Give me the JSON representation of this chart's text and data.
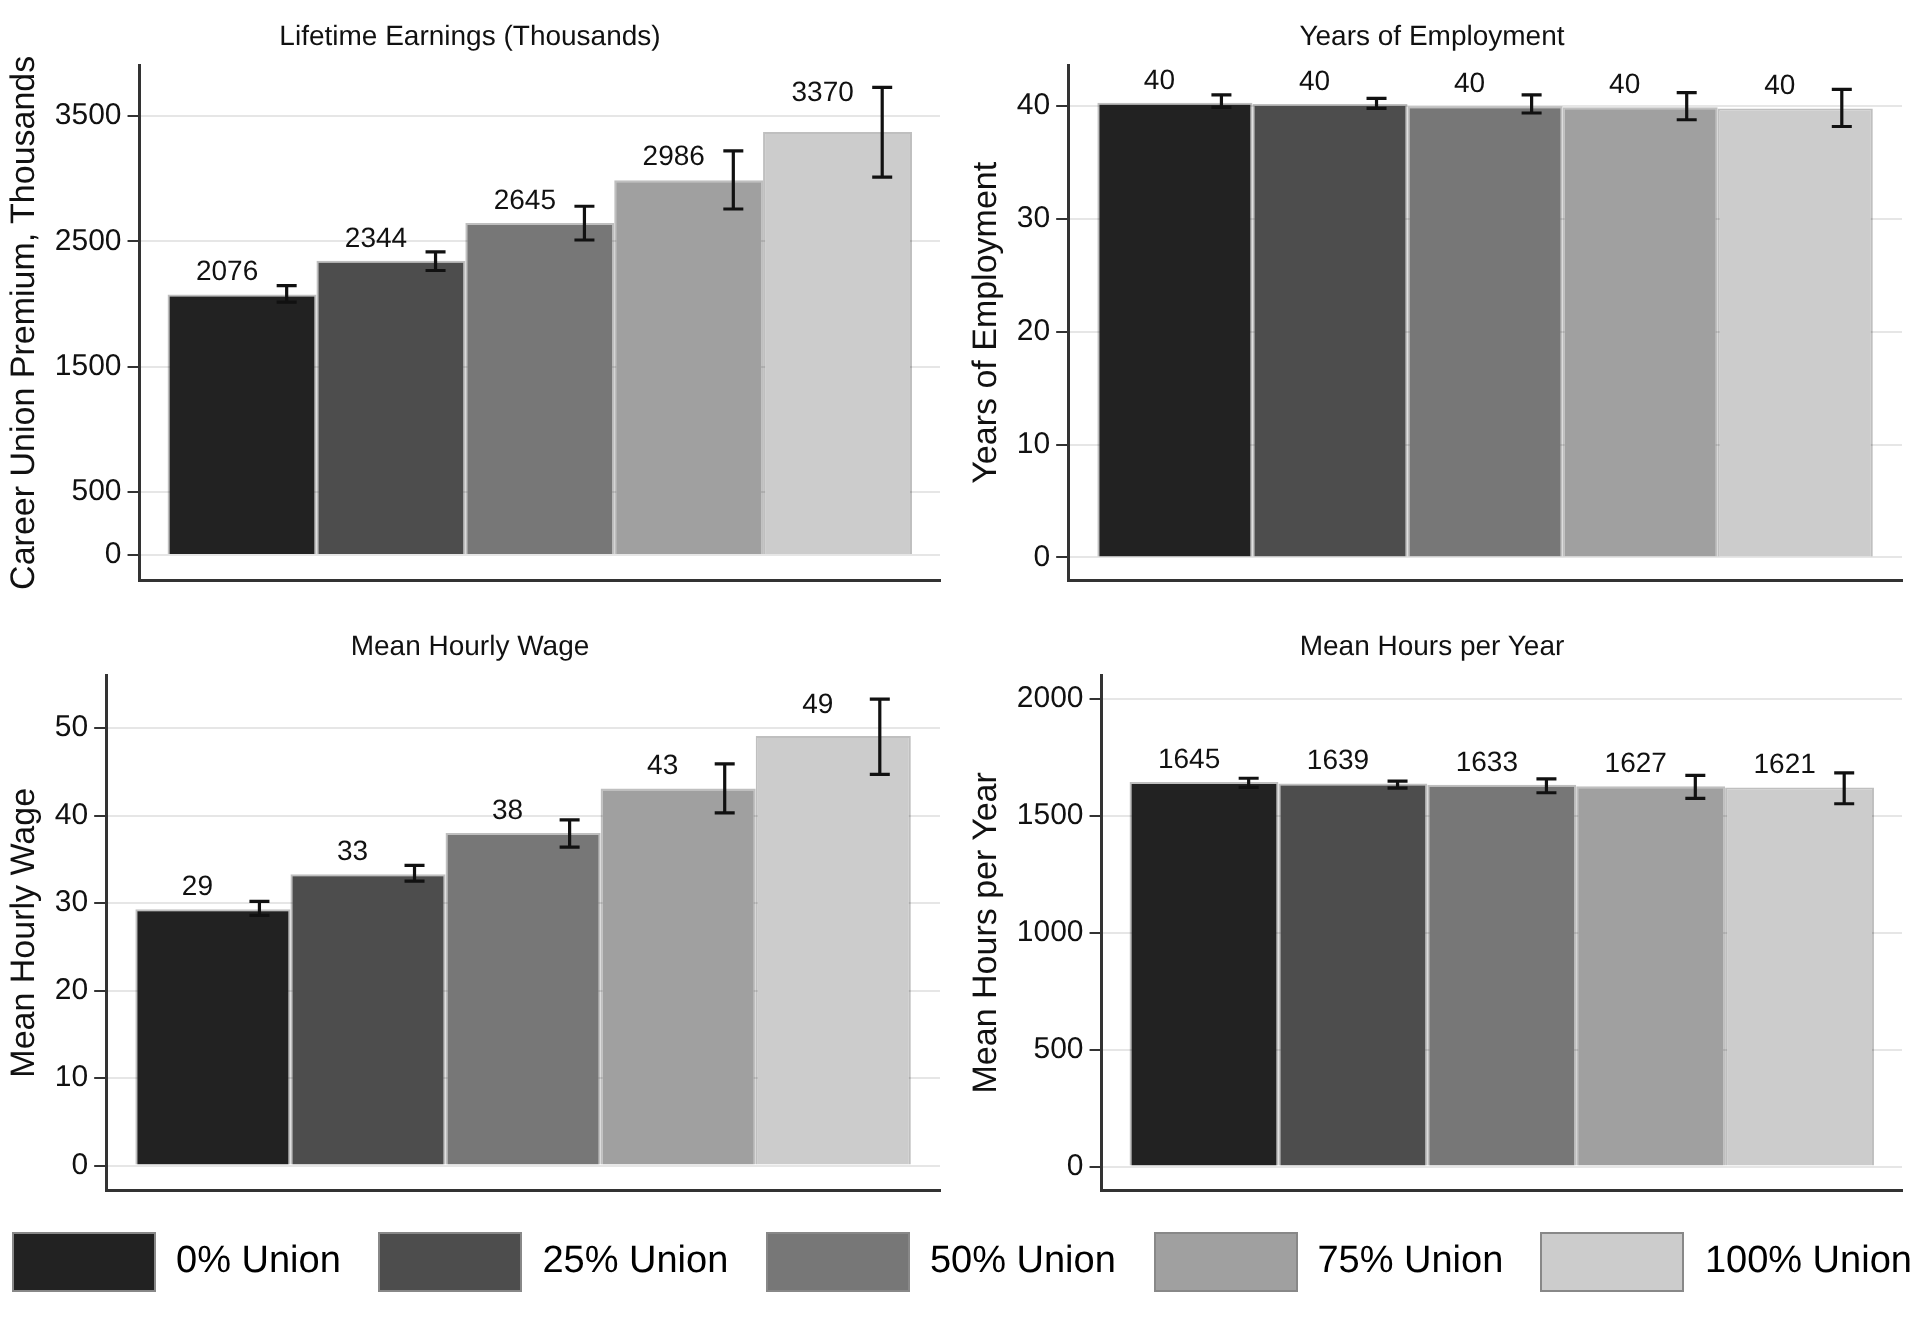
{
  "chart_data": [
    {
      "type": "bar",
      "title": "Lifetime Earnings (Thousands)",
      "ylabel": "Career Union Premium, Thousands",
      "categories": [
        null
      ],
      "ylim": [
        -200,
        3900
      ],
      "yticks": [
        0,
        500,
        1500,
        2500,
        3500
      ],
      "grid": "y",
      "tick_labels": "y",
      "legend": false,
      "data_labels": true,
      "series": [
        {
          "color": "#222222",
          "values": [
            2076
          ],
          "errors": [
            [
              2014,
              2146
            ]
          ]
        },
        {
          "color": "#4d4d4d",
          "values": [
            2344
          ],
          "errors": [
            [
              2267,
              2416
            ]
          ]
        },
        {
          "color": "#777777",
          "values": [
            2645
          ],
          "errors": [
            [
              2510,
              2779
            ]
          ]
        },
        {
          "color": "#a0a0a0",
          "values": [
            2986
          ],
          "errors": [
            [
              2757,
              3220
            ]
          ]
        },
        {
          "color": "#cccccc",
          "values": [
            3370
          ],
          "errors": [
            [
              3011,
              3726
            ]
          ]
        }
      ]
    },
    {
      "type": "bar",
      "title": "Years of Employment",
      "ylabel": "Years of Employment",
      "categories": [
        null
      ],
      "ylim": [
        -2,
        43.6
      ],
      "yticks": [
        0,
        10,
        20,
        30,
        40
      ],
      "grid": "y",
      "tick_labels": "y",
      "legend": false,
      "series": [
        {
          "color": "#222222",
          "values": [
            40.3
          ],
          "value_labels": [
            "40"
          ],
          "errors": [
            [
              39.9,
              41.0
            ]
          ]
        },
        {
          "color": "#4d4d4d",
          "values": [
            40.2
          ],
          "value_labels": [
            "40"
          ],
          "errors": [
            [
              39.8,
              40.7
            ]
          ]
        },
        {
          "color": "#777777",
          "values": [
            40.0
          ],
          "value_labels": [
            "40"
          ],
          "errors": [
            [
              39.4,
              41.0
            ]
          ]
        },
        {
          "color": "#a0a0a0",
          "values": [
            39.9
          ],
          "value_labels": [
            "40"
          ],
          "errors": [
            [
              38.8,
              41.2
            ]
          ]
        },
        {
          "color": "#cccccc",
          "values": [
            39.8
          ],
          "value_labels": [
            "40"
          ],
          "errors": [
            [
              38.2,
              41.5
            ]
          ]
        }
      ]
    },
    {
      "type": "bar",
      "title": "Mean Hourly Wage",
      "ylabel": "Mean Hourly Wage",
      "categories": [
        null
      ],
      "ylim": [
        -2.8,
        56
      ],
      "yticks": [
        0,
        10,
        20,
        30,
        40,
        50
      ],
      "grid": "y",
      "tick_labels": "y",
      "legend": false,
      "series": [
        {
          "color": "#222222",
          "values": [
            29.3
          ],
          "value_labels": [
            "29"
          ],
          "errors": [
            [
              28.6,
              30.2
            ]
          ]
        },
        {
          "color": "#4d4d4d",
          "values": [
            33.3
          ],
          "value_labels": [
            "33"
          ],
          "errors": [
            [
              32.5,
              34.3
            ]
          ]
        },
        {
          "color": "#777777",
          "values": [
            38.0
          ],
          "value_labels": [
            "38"
          ],
          "errors": [
            [
              36.4,
              39.5
            ]
          ]
        },
        {
          "color": "#a0a0a0",
          "values": [
            43.1
          ],
          "value_labels": [
            "43"
          ],
          "errors": [
            [
              40.3,
              45.9
            ]
          ]
        },
        {
          "color": "#cccccc",
          "values": [
            49.1
          ],
          "value_labels": [
            "49"
          ],
          "errors": [
            [
              44.7,
              53.3
            ]
          ]
        }
      ]
    },
    {
      "type": "bar",
      "title": "Mean Hours per Year",
      "ylabel": "Mean Hours per Year",
      "categories": [
        null
      ],
      "ylim": [
        -100,
        2100
      ],
      "yticks": [
        0,
        500,
        1000,
        1500,
        2000
      ],
      "grid": "y",
      "tick_labels": "y",
      "legend": "bottom",
      "data_labels": true,
      "series": [
        {
          "name": "0% Union",
          "color": "#222222",
          "values": [
            1645
          ],
          "errors": [
            [
              1622,
              1661
            ]
          ]
        },
        {
          "name": "25% Union",
          "color": "#4d4d4d",
          "values": [
            1639
          ],
          "errors": [
            [
              1619,
              1649
            ]
          ]
        },
        {
          "name": "50% Union",
          "color": "#777777",
          "values": [
            1633
          ],
          "errors": [
            [
              1599,
              1658
            ]
          ]
        },
        {
          "name": "75% Union",
          "color": "#a0a0a0",
          "values": [
            1627
          ],
          "errors": [
            [
              1575,
              1673
            ]
          ]
        },
        {
          "name": "100% Union",
          "color": "#cccccc",
          "values": [
            1621
          ],
          "errors": [
            [
              1552,
              1684
            ]
          ]
        }
      ]
    }
  ]
}
